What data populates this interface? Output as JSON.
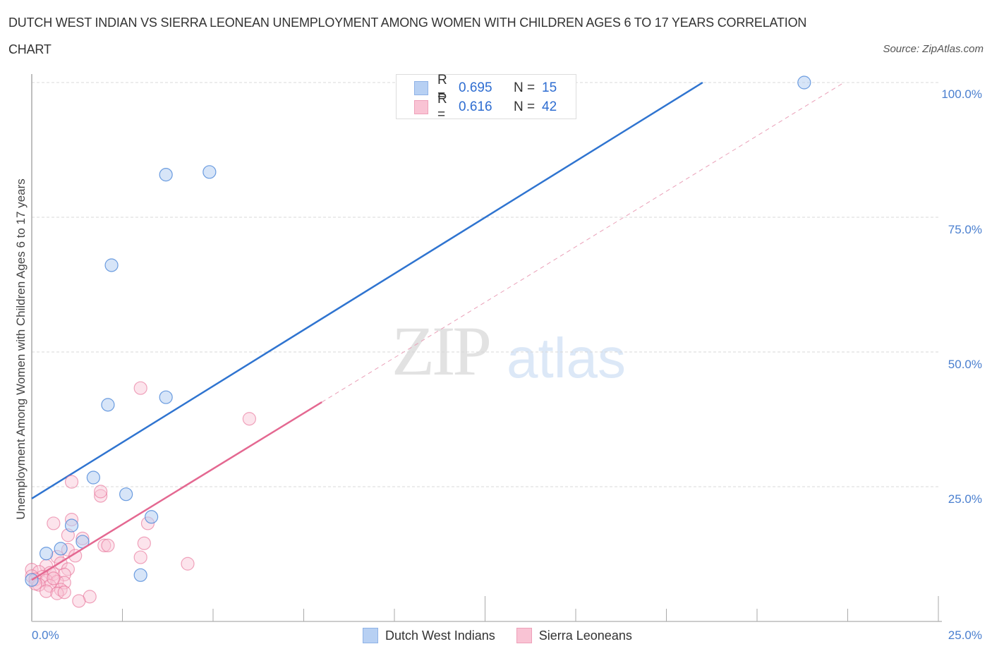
{
  "header": {
    "title_line1": "DUTCH WEST INDIAN VS SIERRA LEONEAN UNEMPLOYMENT AMONG WOMEN WITH CHILDREN AGES 6 TO 17 YEARS CORRELATION",
    "title_line2": "CHART",
    "source": "Source: ZipAtlas.com"
  },
  "watermark": {
    "zip": "ZIP",
    "atlas": "atlas"
  },
  "legend": {
    "rows": [
      {
        "r_label": "R =",
        "r_value": "0.695",
        "n_label": "N =",
        "n_value": "15",
        "color": "#b7d0f3",
        "border": "#8fb2e6"
      },
      {
        "r_label": "R =",
        "r_value": "0.616",
        "n_label": "N =",
        "n_value": "42",
        "color": "#f9c3d4",
        "border": "#eea0b9"
      }
    ]
  },
  "bottom_legend": {
    "items": [
      {
        "label": "Dutch West Indians",
        "color": "#b7d0f3",
        "border": "#8fb2e6"
      },
      {
        "label": "Sierra Leoneans",
        "color": "#f9c3d4",
        "border": "#eea0b9"
      }
    ]
  },
  "axes": {
    "y_label": "Unemployment Among Women with Children Ages 6 to 17 years",
    "y_ticks": [
      "100.0%",
      "75.0%",
      "50.0%",
      "25.0%"
    ],
    "x_ticks": [
      "0.0%",
      "25.0%"
    ]
  },
  "colors": {
    "blue_series": "#4a86d8",
    "blue_fill": "rgba(183,208,243,0.55)",
    "pink_series": "#e66a92",
    "pink_fill": "rgba(249,195,212,0.45)",
    "blue_line": "#2f74d0",
    "pink_line": "#e46891",
    "tick_label": "#4a7fcf"
  },
  "chart_data": {
    "type": "scatter",
    "title": "DUTCH WEST INDIAN VS SIERRA LEONEAN UNEMPLOYMENT AMONG WOMEN WITH CHILDREN AGES 6 TO 17 YEARS CORRELATION CHART",
    "xlabel": "",
    "ylabel": "Unemployment Among Women with Children Ages 6 to 17 years",
    "xlim": [
      0,
      25
    ],
    "ylim": [
      0,
      100
    ],
    "x_tick_labels": [
      "0.0%",
      "25.0%"
    ],
    "y_tick_labels": [
      "25.0%",
      "50.0%",
      "75.0%",
      "100.0%"
    ],
    "grid": "horizontal dashed",
    "legend_position": "bottom",
    "series": [
      {
        "name": "Dutch West Indians",
        "R": 0.695,
        "N": 15,
        "points": [
          [
            21.3,
            100.0
          ],
          [
            3.7,
            82.9
          ],
          [
            4.9,
            83.4
          ],
          [
            2.2,
            66.1
          ],
          [
            2.1,
            40.2
          ],
          [
            3.7,
            41.6
          ],
          [
            1.7,
            26.7
          ],
          [
            2.6,
            23.6
          ],
          [
            3.3,
            19.4
          ],
          [
            1.1,
            17.8
          ],
          [
            1.4,
            14.8
          ],
          [
            0.8,
            13.5
          ],
          [
            0.4,
            12.6
          ],
          [
            3.0,
            8.6
          ],
          [
            0.0,
            7.7
          ]
        ],
        "trendline": {
          "x0": 0,
          "y0": 22.8,
          "x1": 18.5,
          "y1": 100.0,
          "style": "solid"
        }
      },
      {
        "name": "Sierra Leoneans",
        "R": 0.616,
        "N": 42,
        "points": [
          [
            3.0,
            43.3
          ],
          [
            6.0,
            37.6
          ],
          [
            1.1,
            25.9
          ],
          [
            1.9,
            23.3
          ],
          [
            1.9,
            24.1
          ],
          [
            0.6,
            18.2
          ],
          [
            1.1,
            18.9
          ],
          [
            3.2,
            18.2
          ],
          [
            1.0,
            16.0
          ],
          [
            1.4,
            15.4
          ],
          [
            2.0,
            14.1
          ],
          [
            2.1,
            14.1
          ],
          [
            3.1,
            14.5
          ],
          [
            1.0,
            13.3
          ],
          [
            0.7,
            12.0
          ],
          [
            1.2,
            12.2
          ],
          [
            3.0,
            11.9
          ],
          [
            0.8,
            10.8
          ],
          [
            4.3,
            10.7
          ],
          [
            1.0,
            9.7
          ],
          [
            0.4,
            10.3
          ],
          [
            0.0,
            9.6
          ],
          [
            0.2,
            9.2
          ],
          [
            0.5,
            9.0
          ],
          [
            0.6,
            8.8
          ],
          [
            0.9,
            8.7
          ],
          [
            0.3,
            8.3
          ],
          [
            0.0,
            8.4
          ],
          [
            0.1,
            7.8
          ],
          [
            0.4,
            7.6
          ],
          [
            0.7,
            7.4
          ],
          [
            0.9,
            7.2
          ],
          [
            0.5,
            6.6
          ],
          [
            0.2,
            6.8
          ],
          [
            0.8,
            5.9
          ],
          [
            0.4,
            5.6
          ],
          [
            0.7,
            5.2
          ],
          [
            0.9,
            5.4
          ],
          [
            1.6,
            4.6
          ],
          [
            1.3,
            3.8
          ],
          [
            0.1,
            7.0
          ],
          [
            0.6,
            8.0
          ]
        ],
        "trendline": {
          "x0": 0,
          "y0": 7.7,
          "x1": 8.0,
          "y1": 40.7,
          "style": "solid",
          "extension": {
            "x1": 22.4,
            "y1": 100.0,
            "style": "dashed"
          }
        }
      }
    ]
  }
}
